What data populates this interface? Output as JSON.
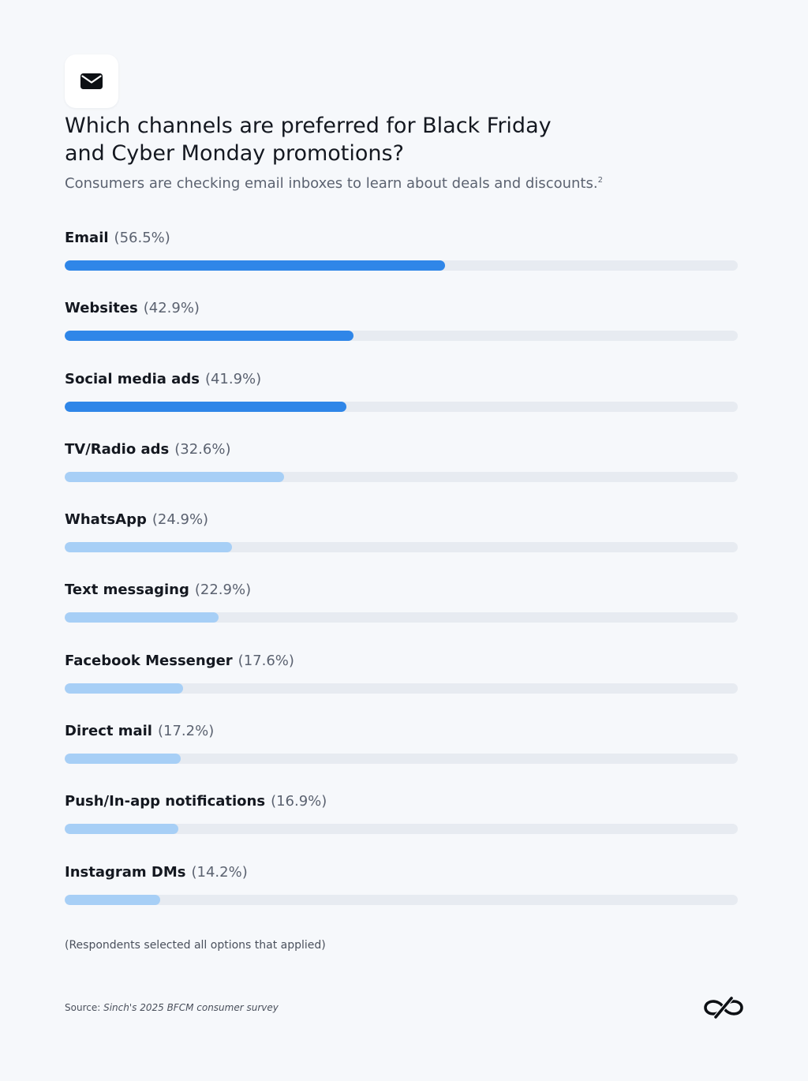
{
  "header": {
    "icon": "envelope-icon",
    "title_line1": "Which channels are preferred for Black Friday",
    "title_line2": "and Cyber Monday promotions?",
    "subtitle": "Consumers are checking email inboxes to learn about deals and discounts.",
    "subtitle_footnote": "2"
  },
  "chart_data": {
    "type": "bar",
    "orientation": "horizontal",
    "title": "Which channels are preferred for Black Friday and Cyber Monday promotions?",
    "subtitle": "Consumers are checking email inboxes to learn about deals and discounts.",
    "categories": [
      "Email",
      "Websites",
      "Social media ads",
      "TV/Radio ads",
      "WhatsApp",
      "Text messaging",
      "Facebook Messenger",
      "Direct mail",
      "Push/In-app notifications",
      "Instagram DMs"
    ],
    "value_labels": [
      "(56.5%)",
      "(42.9%)",
      "(41.9%)",
      "(32.6%)",
      "(24.9%)",
      "(22.9%)",
      "(17.6%)",
      "(17.2%)",
      "(16.9%)",
      "(14.2%)"
    ],
    "values": [
      56.5,
      42.9,
      41.9,
      32.6,
      24.9,
      22.9,
      17.6,
      17.2,
      16.9,
      14.2
    ],
    "unit": "%",
    "xlim": [
      0,
      100
    ],
    "grid": false,
    "colors": {
      "highlight": "#2f86e8",
      "standard": "#a7cff6",
      "track": "#e7ebf1"
    },
    "highlight_count": 3
  },
  "footer": {
    "note": "(Respondents selected all options that applied)",
    "source_label": "Source:",
    "source_text": "Sinch's 2025 BFCM consumer survey",
    "logo": "sinch-logo-icon"
  }
}
